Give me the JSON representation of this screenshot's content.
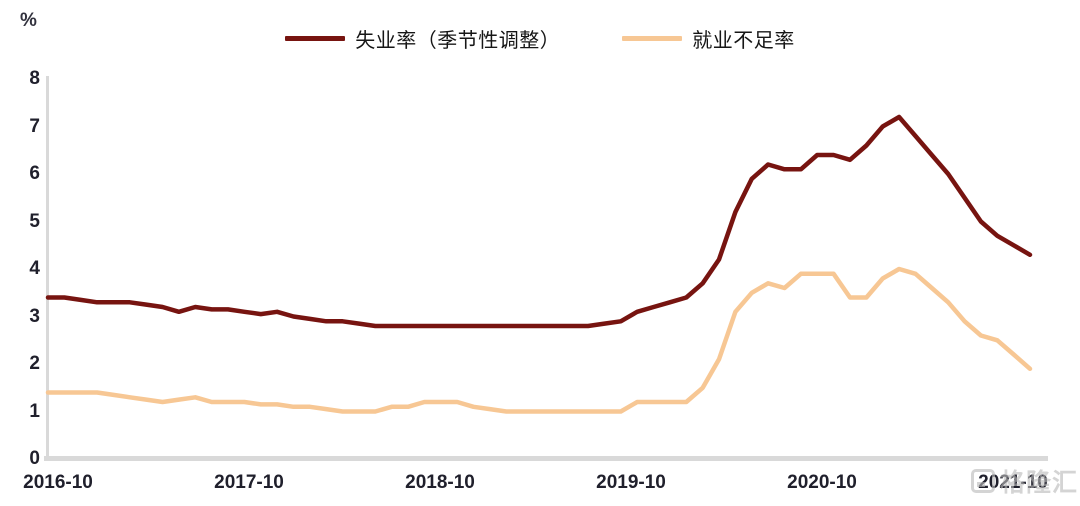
{
  "watermark": {
    "text": "格隆汇"
  },
  "chart_data": {
    "type": "line",
    "title": "",
    "ylabel": "%",
    "ylim": [
      0,
      8
    ],
    "y_ticks": [
      "8",
      "7",
      "6",
      "5",
      "4",
      "3",
      "2",
      "1",
      "0"
    ],
    "x_tick_labels": [
      "2016-10",
      "2017-10",
      "2018-10",
      "2019-10",
      "2020-10",
      "2021-10"
    ],
    "x_frequency": "monthly",
    "x_range": [
      "2016-10",
      "2021-10"
    ],
    "grid": false,
    "legend_position": "top-center",
    "axis_color": "#d9d9d9",
    "series": [
      {
        "name": "失业率（季节性调整）",
        "id": "unemployment-rate-seasonally-adjusted",
        "color": "#771410",
        "stroke_width": 4.5,
        "values": [
          3.4,
          3.4,
          3.35,
          3.3,
          3.3,
          3.3,
          3.25,
          3.2,
          3.1,
          3.2,
          3.15,
          3.15,
          3.1,
          3.05,
          3.1,
          3.0,
          2.95,
          2.9,
          2.9,
          2.85,
          2.8,
          2.8,
          2.8,
          2.8,
          2.8,
          2.8,
          2.8,
          2.8,
          2.8,
          2.8,
          2.8,
          2.8,
          2.8,
          2.8,
          2.85,
          2.9,
          3.1,
          3.2,
          3.3,
          3.4,
          3.7,
          4.2,
          5.2,
          5.9,
          6.2,
          6.1,
          6.1,
          6.4,
          6.4,
          6.3,
          6.6,
          7.0,
          7.2,
          6.8,
          6.4,
          6.0,
          5.5,
          5.0,
          4.7,
          4.5,
          4.3
        ]
      },
      {
        "name": "就业不足率",
        "id": "underemployment-rate",
        "color": "#f7c794",
        "stroke_width": 4.5,
        "values": [
          1.4,
          1.4,
          1.4,
          1.4,
          1.35,
          1.3,
          1.25,
          1.2,
          1.25,
          1.3,
          1.2,
          1.2,
          1.2,
          1.15,
          1.15,
          1.1,
          1.1,
          1.05,
          1.0,
          1.0,
          1.0,
          1.1,
          1.1,
          1.2,
          1.2,
          1.2,
          1.1,
          1.05,
          1.0,
          1.0,
          1.0,
          1.0,
          1.0,
          1.0,
          1.0,
          1.0,
          1.2,
          1.2,
          1.2,
          1.2,
          1.5,
          2.1,
          3.1,
          3.5,
          3.7,
          3.6,
          3.9,
          3.9,
          3.9,
          3.4,
          3.4,
          3.8,
          4.0,
          3.9,
          3.6,
          3.3,
          2.9,
          2.6,
          2.5,
          2.2,
          1.9
        ]
      }
    ]
  }
}
